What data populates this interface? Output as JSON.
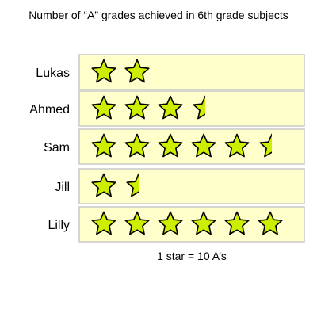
{
  "chart_data": {
    "type": "pictograph",
    "title": "Number of “A” grades achieved in 6th grade subjects",
    "key": "1 star = 10 A’s",
    "units_per_star": 10,
    "categories": [
      "Lukas",
      "Ahmed",
      "Sam",
      "Jill",
      "Lilly"
    ],
    "stars": [
      2,
      3.5,
      5.5,
      1.5,
      6
    ],
    "values": [
      20,
      35,
      55,
      15,
      60
    ],
    "grid": true,
    "colors": {
      "panel_bg": "#ffffcc",
      "border": "#c8c8c8",
      "star_fill": "#ccee00",
      "star_stroke": "#000000"
    }
  }
}
